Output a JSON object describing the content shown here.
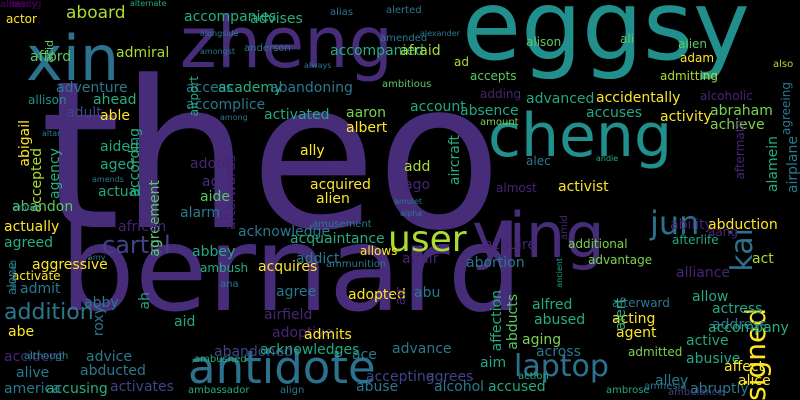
{
  "palette": [
    "#440154",
    "#472c7a",
    "#3b518b",
    "#2c718e",
    "#21908d",
    "#27ad81",
    "#5cc863",
    "#aadc32",
    "#fde725",
    "#482475",
    "#414487",
    "#2a788e",
    "#22a884",
    "#7ad151"
  ],
  "words": [
    "theo",
    "bernard",
    "eggsy",
    "zheng",
    "cheng",
    "xin",
    "ying",
    "antidote",
    "user",
    "laptop",
    "jun",
    "kai",
    "signed",
    "cartel",
    "aboard",
    "actor",
    "afford",
    "admiral",
    "accompanies",
    "advises",
    "accompanied",
    "afraid",
    "alias",
    "alternate",
    "acid",
    "adam",
    "alien",
    "ali",
    "alison",
    "also",
    "ad",
    "accepts",
    "admitting",
    "adventure",
    "ahead",
    "able",
    "access",
    "academy",
    "abandoning",
    "account",
    "absence",
    "adding",
    "advanced",
    "accidentally",
    "alcoholic",
    "abraham",
    "achieve",
    "agreeing",
    "allison",
    "abigail",
    "adult",
    "accepted",
    "agency",
    "aided",
    "aged",
    "actual",
    "according",
    "accomplice",
    "activated",
    "aaron",
    "albert",
    "accuses",
    "activity",
    "aftermath",
    "airport",
    "afterwards",
    "adopt",
    "age",
    "add",
    "ago",
    "aircraft",
    "alec",
    "almost",
    "activist",
    "acquired",
    "alien",
    "ally",
    "aide",
    "agreement",
    "alarm",
    "abandon",
    "actually",
    "agreed",
    "african",
    "acknowledge",
    "abbey",
    "acquires",
    "acquaintance",
    "allows",
    "acquire",
    "ability",
    "abduction",
    "afterlife",
    "aang",
    "act",
    "alamein",
    "airplane",
    "aggressive",
    "activate",
    "admit",
    "alone",
    "agree",
    "addict",
    "affair",
    "abortion",
    "advantage",
    "additional",
    "alliance",
    "allow",
    "actress",
    "address",
    "addition",
    "abby",
    "roxy",
    "ah",
    "aid",
    "airfield",
    "adoptive",
    "admits",
    "adopted",
    "air",
    "abu",
    "affection",
    "alfred",
    "afterward",
    "acting",
    "agent",
    "alert",
    "abe",
    "accident",
    "advice",
    "abandoned",
    "acknowledges",
    "ace",
    "advance",
    "aim",
    "abducts",
    "abused",
    "aging",
    "across",
    "active",
    "accompany",
    "abusive",
    "admitted",
    "alive",
    "abducted",
    "activates",
    "accusing",
    "accepting",
    "abuse",
    "agrees",
    "alcohol",
    "accused",
    "action",
    "america",
    "alley",
    "abruptly",
    "affect",
    "alice",
    "align",
    "ambassador",
    "ambrose",
    "although",
    "ambushed",
    "ambulance",
    "amnesia",
    "alongside",
    "ambitious",
    "amended",
    "always",
    "amongst",
    "among",
    "amusement",
    "amulet",
    "alpha",
    "ancient",
    "amid",
    "andie",
    "altar",
    "amends",
    "amy",
    "amount",
    "anderson",
    "alerted",
    "alexander",
    "amber",
    "ana",
    "ammunition",
    "ambush",
    "allowed",
    "allies",
    "allowing",
    "already",
    "alex",
    "allie"
  ]
}
